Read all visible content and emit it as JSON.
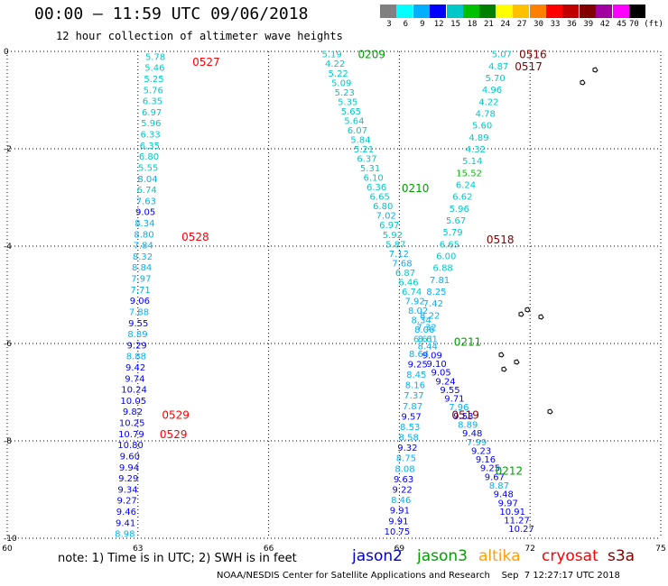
{
  "header": {
    "title": "00:00 — 11:59 UTC 09/06/2018",
    "subtitle": "12 hour collection of altimeter wave heights"
  },
  "color_scale": {
    "labels": [
      "3",
      "6",
      "9",
      "12",
      "15",
      "18",
      "21",
      "24",
      "27",
      "30",
      "33",
      "36",
      "39",
      "42",
      "45",
      "70 (ft)"
    ],
    "colors": [
      "#808080",
      "#00ffff",
      "#00b0ff",
      "#0000ff",
      "#00c8c8",
      "#00c000",
      "#008000",
      "#ffff00",
      "#ffc000",
      "#ff8000",
      "#ff0000",
      "#c00000",
      "#800000",
      "#a000a0",
      "#ff00ff",
      "#000000"
    ]
  },
  "chart_data": {
    "type": "map",
    "axes": {
      "x_ticks": [
        "60",
        "63",
        "66",
        "69",
        "72",
        "75"
      ],
      "y_ticks": [
        "0",
        "-2",
        "-4",
        "-6",
        "-8",
        "-10"
      ],
      "xlim": [
        60,
        75
      ],
      "ylim": [
        -10,
        0
      ]
    },
    "grid": true,
    "satellite_colors": {
      "jason2": "#0000c8",
      "jason3": "#00a000",
      "altika": "#ffa000",
      "cryosat": "#ff0000",
      "s3a": "#800000"
    },
    "track_labels": [
      {
        "text": "0527",
        "sat": "cryosat",
        "lon": 64.25,
        "lat": -0.2
      },
      {
        "text": "0528",
        "sat": "cryosat",
        "lon": 64.0,
        "lat": -3.8
      },
      {
        "text": "0529",
        "sat": "cryosat",
        "lon": 63.55,
        "lat": -7.45
      },
      {
        "text": "0529",
        "sat": "cryosat",
        "lon": 63.5,
        "lat": -7.85
      },
      {
        "text": "0209",
        "sat": "jason3",
        "lon": 68.05,
        "lat": -0.05
      },
      {
        "text": "0210",
        "sat": "jason3",
        "lon": 69.05,
        "lat": -2.8
      },
      {
        "text": "0211",
        "sat": "jason3",
        "lon": 70.25,
        "lat": -5.95
      },
      {
        "text": "0212",
        "sat": "jason3",
        "lon": 71.2,
        "lat": -8.6
      },
      {
        "text": "0516",
        "sat": "s3a",
        "lon": 71.75,
        "lat": -0.05
      },
      {
        "text": "0517",
        "sat": "s3a",
        "lon": 71.65,
        "lat": -0.3
      },
      {
        "text": "0518",
        "sat": "s3a",
        "lon": 71.0,
        "lat": -3.85
      },
      {
        "text": "0519",
        "sat": "s3a",
        "lon": 70.2,
        "lat": -7.45
      }
    ],
    "tracks": [
      {
        "sat": "cryosat",
        "lon_start": 63.4,
        "lon_end": 62.7,
        "lat_start": -0.1,
        "lat_end": -9.9,
        "values": [
          {
            "v": "5.78",
            "c": "#00c8c8"
          },
          {
            "v": "5.46",
            "c": "#00c8c8"
          },
          {
            "v": "5.25",
            "c": "#00c8c8"
          },
          {
            "v": "5.76",
            "c": "#00c8c8"
          },
          {
            "v": "6.35",
            "c": "#00c8c8"
          },
          {
            "v": "6.97",
            "c": "#00c8c8"
          },
          {
            "v": "5.96",
            "c": "#00c8c8"
          },
          {
            "v": "6.33",
            "c": "#00c8c8"
          },
          {
            "v": "6.35",
            "c": "#00c8c8"
          },
          {
            "v": "6.80",
            "c": "#00c8c8"
          },
          {
            "v": "5.55",
            "c": "#00c8c8"
          },
          {
            "v": "8.04",
            "c": "#00b0ff"
          },
          {
            "v": "6.74",
            "c": "#00c8c8"
          },
          {
            "v": "7.63",
            "c": "#00b0ff"
          },
          {
            "v": "9.05",
            "c": "#0000ff"
          },
          {
            "v": "8.34",
            "c": "#00b0ff"
          },
          {
            "v": "8.80",
            "c": "#00b0ff"
          },
          {
            "v": "7.84",
            "c": "#00b0ff"
          },
          {
            "v": "8.32",
            "c": "#00b0ff"
          },
          {
            "v": "8.84",
            "c": "#00b0ff"
          },
          {
            "v": "7.97",
            "c": "#00b0ff"
          },
          {
            "v": "7.71",
            "c": "#00b0ff"
          },
          {
            "v": "9.06",
            "c": "#0000ff"
          },
          {
            "v": "7.88",
            "c": "#00b0ff"
          },
          {
            "v": "9.55",
            "c": "#0000ff"
          },
          {
            "v": "8.89",
            "c": "#00b0ff"
          },
          {
            "v": "9.29",
            "c": "#0000ff"
          },
          {
            "v": "8.88",
            "c": "#00b0ff"
          },
          {
            "v": "9.42",
            "c": "#0000ff"
          },
          {
            "v": "9.74",
            "c": "#0000ff"
          },
          {
            "v": "10.24",
            "c": "#0000ff"
          },
          {
            "v": "10.05",
            "c": "#0000ff"
          },
          {
            "v": "9.82",
            "c": "#0000ff"
          },
          {
            "v": "10.25",
            "c": "#0000ff"
          },
          {
            "v": "10.79",
            "c": "#0000ff"
          },
          {
            "v": "10.80",
            "c": "#0000ff"
          },
          {
            "v": "9.60",
            "c": "#0000ff"
          },
          {
            "v": "9.94",
            "c": "#0000ff"
          },
          {
            "v": "9.29",
            "c": "#0000ff"
          },
          {
            "v": "9.34",
            "c": "#0000ff"
          },
          {
            "v": "9.27",
            "c": "#0000ff"
          },
          {
            "v": "9.46",
            "c": "#0000ff"
          },
          {
            "v": "9.41",
            "c": "#0000ff"
          },
          {
            "v": "8.98",
            "c": "#00b0ff"
          }
        ]
      },
      {
        "sat": "jason3",
        "lon_start": 67.45,
        "lon_end": 69.65,
        "lat_start": -0.05,
        "lat_end": -5.9,
        "values": [
          {
            "v": "5.19",
            "c": "#00c8c8"
          },
          {
            "v": "4.22",
            "c": "#00c8c8"
          },
          {
            "v": "5.22",
            "c": "#00c8c8"
          },
          {
            "v": "5.09",
            "c": "#00c8c8"
          },
          {
            "v": "5.23",
            "c": "#00c8c8"
          },
          {
            "v": "5.35",
            "c": "#00c8c8"
          },
          {
            "v": "5.65",
            "c": "#00c8c8"
          },
          {
            "v": "5.64",
            "c": "#00c8c8"
          },
          {
            "v": "6.07",
            "c": "#00c8c8"
          },
          {
            "v": "5.84",
            "c": "#00c8c8"
          },
          {
            "v": "5.21",
            "c": "#00c8c8"
          },
          {
            "v": "6.37",
            "c": "#00c8c8"
          },
          {
            "v": "5.31",
            "c": "#00c8c8"
          },
          {
            "v": "6.10",
            "c": "#00c8c8"
          },
          {
            "v": "6.36",
            "c": "#00c8c8"
          },
          {
            "v": "6.65",
            "c": "#00c8c8"
          },
          {
            "v": "6.80",
            "c": "#00c8c8"
          },
          {
            "v": "7.02",
            "c": "#00b0ff"
          },
          {
            "v": "6.97",
            "c": "#00c8c8"
          },
          {
            "v": "5.92",
            "c": "#00c8c8"
          },
          {
            "v": "5.87",
            "c": "#00c8c8"
          },
          {
            "v": "7.12",
            "c": "#00b0ff"
          },
          {
            "v": "7.68",
            "c": "#00b0ff"
          },
          {
            "v": "6.87",
            "c": "#00c8c8"
          },
          {
            "v": "6.46",
            "c": "#00c8c8"
          },
          {
            "v": "6.74",
            "c": "#00c8c8"
          },
          {
            "v": "7.92",
            "c": "#00b0ff"
          },
          {
            "v": "8.02",
            "c": "#00b0ff"
          },
          {
            "v": "8.34",
            "c": "#00b0ff"
          },
          {
            "v": "8.06",
            "c": "#00b0ff"
          },
          {
            "v": "8.61",
            "c": "#00b0ff"
          }
        ]
      },
      {
        "sat": "jason3",
        "lon_start": 69.65,
        "lon_end": 71.8,
        "lat_start": -6.05,
        "lat_end": -9.8,
        "values": [
          {
            "v": "8.44",
            "c": "#00b0ff"
          },
          {
            "v": "9.09",
            "c": "#0000ff"
          },
          {
            "v": "9.10",
            "c": "#0000ff"
          },
          {
            "v": "9.05",
            "c": "#0000ff"
          },
          {
            "v": "9.24",
            "c": "#0000ff"
          },
          {
            "v": "9.55",
            "c": "#0000ff"
          },
          {
            "v": "9.71",
            "c": "#0000ff"
          },
          {
            "v": "7.96",
            "c": "#00b0ff"
          },
          {
            "v": "9.53",
            "c": "#0000ff"
          },
          {
            "v": "8.89",
            "c": "#00b0ff"
          },
          {
            "v": "9.48",
            "c": "#0000ff"
          },
          {
            "v": "7.99",
            "c": "#00b0ff"
          },
          {
            "v": "9.23",
            "c": "#0000ff"
          },
          {
            "v": "9.16",
            "c": "#0000ff"
          },
          {
            "v": "9.25",
            "c": "#0000ff"
          },
          {
            "v": "9.67",
            "c": "#0000ff"
          },
          {
            "v": "8.87",
            "c": "#00b0ff"
          },
          {
            "v": "9.48",
            "c": "#0000ff"
          },
          {
            "v": "9.97",
            "c": "#0000ff"
          },
          {
            "v": "10.91",
            "c": "#0000ff"
          },
          {
            "v": "11.27",
            "c": "#0000ff"
          },
          {
            "v": "10.27",
            "c": "#0000ff"
          }
        ]
      },
      {
        "sat": "s3a",
        "lon_start": 71.35,
        "lon_end": 69.55,
        "lat_start": -0.05,
        "lat_end": -5.9,
        "values": [
          {
            "v": "5.07",
            "c": "#00c8c8"
          },
          {
            "v": "4.87",
            "c": "#00c8c8"
          },
          {
            "v": "5.70",
            "c": "#00c8c8"
          },
          {
            "v": "4.96",
            "c": "#00c8c8"
          },
          {
            "v": "4.22",
            "c": "#00c8c8"
          },
          {
            "v": "4.78",
            "c": "#00c8c8"
          },
          {
            "v": "5.60",
            "c": "#00c8c8"
          },
          {
            "v": "4.89",
            "c": "#00c8c8"
          },
          {
            "v": "4.32",
            "c": "#00c8c8"
          },
          {
            "v": "5.14",
            "c": "#00c8c8"
          },
          {
            "v": "15.52",
            "c": "#00c000"
          },
          {
            "v": "6.24",
            "c": "#00c8c8"
          },
          {
            "v": "6.62",
            "c": "#00c8c8"
          },
          {
            "v": "5.96",
            "c": "#00c8c8"
          },
          {
            "v": "5.67",
            "c": "#00c8c8"
          },
          {
            "v": "5.79",
            "c": "#00c8c8"
          },
          {
            "v": "6.65",
            "c": "#00c8c8"
          },
          {
            "v": "6.00",
            "c": "#00c8c8"
          },
          {
            "v": "6.88",
            "c": "#00c8c8"
          },
          {
            "v": "7.81",
            "c": "#00b0ff"
          },
          {
            "v": "8.25",
            "c": "#00b0ff"
          },
          {
            "v": "7.42",
            "c": "#00b0ff"
          },
          {
            "v": "8.22",
            "c": "#00b0ff"
          },
          {
            "v": "7.32",
            "c": "#00b0ff"
          },
          {
            "v": "6.61",
            "c": "#00c8c8"
          }
        ]
      },
      {
        "sat": "s3a",
        "lon_start": 69.45,
        "lon_end": 68.95,
        "lat_start": -6.2,
        "lat_end": -9.85,
        "values": [
          {
            "v": "8.64",
            "c": "#00b0ff"
          },
          {
            "v": "9.25",
            "c": "#0000ff"
          },
          {
            "v": "8.45",
            "c": "#00b0ff"
          },
          {
            "v": "8.16",
            "c": "#00b0ff"
          },
          {
            "v": "7.37",
            "c": "#00b0ff"
          },
          {
            "v": "7.87",
            "c": "#00b0ff"
          },
          {
            "v": "9.57",
            "c": "#0000ff"
          },
          {
            "v": "8.53",
            "c": "#00b0ff"
          },
          {
            "v": "8.58",
            "c": "#00b0ff"
          },
          {
            "v": "9.32",
            "c": "#0000ff"
          },
          {
            "v": "8.75",
            "c": "#00b0ff"
          },
          {
            "v": "8.08",
            "c": "#00b0ff"
          },
          {
            "v": "9.63",
            "c": "#0000ff"
          },
          {
            "v": "9.22",
            "c": "#0000ff"
          },
          {
            "v": "8.46",
            "c": "#00b0ff"
          },
          {
            "v": "9.91",
            "c": "#0000ff"
          },
          {
            "v": "9.91",
            "c": "#0000ff"
          },
          {
            "v": "10.75",
            "c": "#0000ff"
          }
        ]
      }
    ]
  },
  "footer": {
    "note": "note: 1) Time is in UTC; 2) SWH is in feet",
    "legend": [
      {
        "name": "jason2",
        "color": "#0000c8"
      },
      {
        "name": "jason3",
        "color": "#00a000"
      },
      {
        "name": "altika",
        "color": "#ffa000"
      },
      {
        "name": "cryosat",
        "color": "#ff0000"
      },
      {
        "name": "s3a",
        "color": "#800000"
      }
    ],
    "credits": "NOAA/NESDIS Center for Satellite Applications and Research    Sep  7 12:27:17 UTC 2018"
  }
}
